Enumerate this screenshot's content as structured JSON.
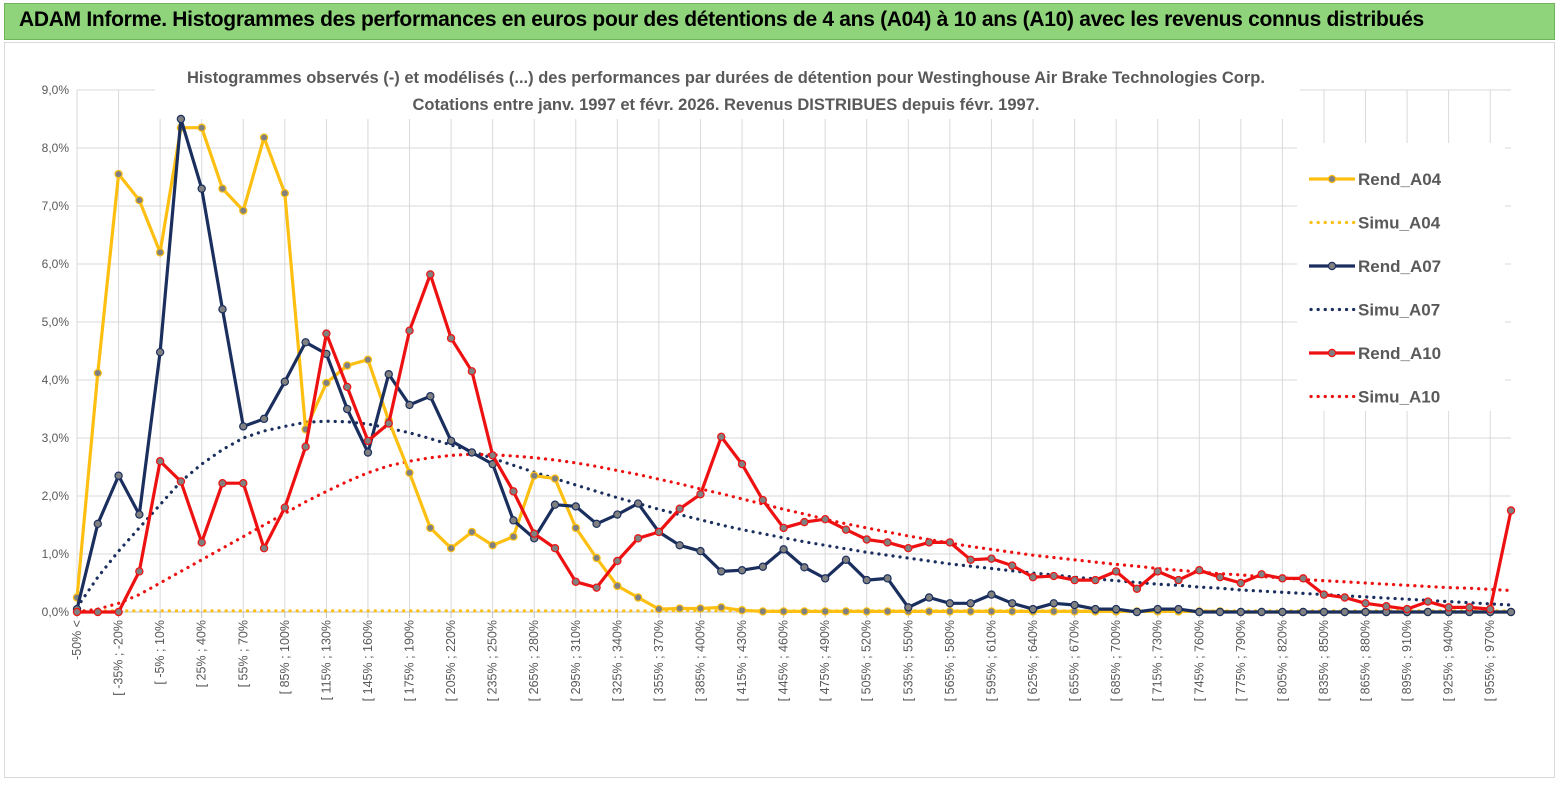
{
  "banner": {
    "title": "ADAM Informe. Histogrammes des performances en euros pour des détentions de 4 ans (A04) à 10 ans (A10) avec les revenus connus distribués"
  },
  "colors": {
    "A04": "#fdbf11",
    "A07": "#1b2f5e",
    "A10": "#ee1111",
    "banner": "#8fd47a"
  },
  "chart_data": {
    "type": "line",
    "title_line1": "Histogrammes observés (-)  et modélisés (...) des performances par durées de détention pour Westinghouse Air Brake Technologies Corp.",
    "title_line2": "Cotations entre janv. 1997 et févr.  2026. Revenus DISTRIBUES depuis févr. 1997.",
    "xlabel": "",
    "ylabel": "",
    "ylim": [
      0,
      9
    ],
    "y_ticks": [
      "0,0%",
      "1,0%",
      "2,0%",
      "3,0%",
      "4,0%",
      "5,0%",
      "6,0%",
      "7,0%",
      "8,0%",
      "9,0%"
    ],
    "x_tick_labels": [
      "-50% <",
      "[ -35% ; -20%",
      "[ -5% ; 10%",
      "[ 25% ; 40%",
      "[ 55% ; 70%",
      "[ 85% ; 100%",
      "[ 115% ; 130%",
      "[ 145% ; 160%",
      "[ 175% ; 190%",
      "[ 205% ; 220%",
      "[ 235% ; 250%",
      "[ 265% ; 280%",
      "[ 295% ; 310%",
      "[ 325% ; 340%",
      "[ 355% ; 370%",
      "[ 385% ; 400%",
      "[ 415% ; 430%",
      "[ 445% ; 460%",
      "[ 475% ; 490%",
      "[ 505% ; 520%",
      "[ 535% ; 550%",
      "[ 565% ; 580%",
      "[ 595% ; 610%",
      "[ 625% ; 640%",
      "[ 655% ; 670%",
      "[ 685% ; 700%",
      "[ 715% ; 730%",
      "[ 745% ; 760%",
      "[ 775% ; 790%",
      "[ 805% ; 820%",
      "[ 835% ; 850%",
      "[ 865% ; 880%",
      "[ 895% ; 910%",
      "[ 925% ; 940%",
      "[ 955% ; 970%"
    ],
    "n_categories": 70,
    "legend_position": "right",
    "series": [
      {
        "name": "Rend_A04",
        "key": "A04",
        "style": "solid",
        "values": [
          0.25,
          4.12,
          7.55,
          7.1,
          6.2,
          8.35,
          8.35,
          7.3,
          6.92,
          8.18,
          7.22,
          3.15,
          3.95,
          4.25,
          4.35,
          3.3,
          2.4,
          1.45,
          1.1,
          1.38,
          1.15,
          1.3,
          2.35,
          2.3,
          1.45,
          0.93,
          0.45,
          0.25,
          0.05,
          0.06,
          0.06,
          0.08,
          0.03,
          0.01,
          0.01,
          0.01,
          0.01,
          0.01,
          0.01,
          0.01,
          0.01,
          0.01,
          0.01,
          0.01,
          0.01,
          0.01,
          0.01,
          0.01,
          0.01,
          0.01,
          0.01,
          0.01,
          0.01,
          0.01,
          0.01,
          0.01,
          0.0,
          0.0,
          0.0,
          0.0,
          0.0,
          0.0,
          0.0,
          0.0,
          0.0,
          0.0,
          0.0,
          0.0,
          0.0,
          0.0
        ]
      },
      {
        "name": "Simu_A04",
        "key": "A04",
        "style": "dotted",
        "values": [
          0.02,
          0.02,
          0.02,
          0.02,
          0.02,
          0.02,
          0.02,
          0.02,
          0.02,
          0.02,
          0.02,
          0.02,
          0.02,
          0.02,
          0.02,
          0.02,
          0.02,
          0.02,
          0.02,
          0.02,
          0.02,
          0.02,
          0.02,
          0.02,
          0.02,
          0.02,
          0.02,
          0.02,
          0.02,
          0.02,
          0.02,
          0.02,
          0.02,
          0.02,
          0.02,
          0.02,
          0.02,
          0.02,
          0.02,
          0.02,
          0.02,
          0.02,
          0.02,
          0.02,
          0.02,
          0.02,
          0.02,
          0.02,
          0.02,
          0.02,
          0.02,
          0.02,
          0.02,
          0.02,
          0.02,
          0.02,
          0.02,
          0.02,
          0.02,
          0.02,
          0.02,
          0.02,
          0.02,
          0.02,
          0.02,
          0.02,
          0.02,
          0.02,
          0.02,
          0.02
        ]
      },
      {
        "name": "Rend_A07",
        "key": "A07",
        "style": "solid",
        "values": [
          0.05,
          1.52,
          2.35,
          1.68,
          4.48,
          8.5,
          7.3,
          5.22,
          3.2,
          3.33,
          3.97,
          4.65,
          4.45,
          3.5,
          2.75,
          4.1,
          3.57,
          3.72,
          2.95,
          2.75,
          2.55,
          1.58,
          1.27,
          1.85,
          1.82,
          1.52,
          1.68,
          1.87,
          1.38,
          1.15,
          1.05,
          0.7,
          0.72,
          0.78,
          1.08,
          0.77,
          0.58,
          0.9,
          0.55,
          0.58,
          0.08,
          0.25,
          0.15,
          0.15,
          0.3,
          0.15,
          0.05,
          0.15,
          0.12,
          0.05,
          0.05,
          0.0,
          0.05,
          0.05,
          0.0,
          0.0,
          0.0,
          0.0,
          0.0,
          0.0,
          0.0,
          0.0,
          0.0,
          0.0,
          0.0,
          0.0,
          0.0,
          0.0,
          0.0,
          0.0
        ]
      },
      {
        "name": "Simu_A07",
        "key": "A07",
        "style": "dotted",
        "values": [
          0.08,
          0.6,
          1.05,
          1.45,
          1.85,
          2.25,
          2.55,
          2.8,
          3.0,
          3.12,
          3.2,
          3.27,
          3.29,
          3.28,
          3.24,
          3.17,
          3.09,
          2.99,
          2.88,
          2.77,
          2.65,
          2.53,
          2.41,
          2.3,
          2.19,
          2.08,
          1.97,
          1.87,
          1.77,
          1.68,
          1.59,
          1.5,
          1.42,
          1.35,
          1.28,
          1.21,
          1.15,
          1.09,
          1.03,
          0.98,
          0.93,
          0.88,
          0.83,
          0.79,
          0.75,
          0.71,
          0.67,
          0.64,
          0.6,
          0.57,
          0.54,
          0.51,
          0.48,
          0.46,
          0.43,
          0.41,
          0.38,
          0.36,
          0.34,
          0.32,
          0.3,
          0.28,
          0.26,
          0.24,
          0.22,
          0.2,
          0.18,
          0.16,
          0.14,
          0.12
        ]
      },
      {
        "name": "Rend_A10",
        "key": "A10",
        "style": "solid",
        "values": [
          0.0,
          0.0,
          0.0,
          0.7,
          2.6,
          2.25,
          1.2,
          2.22,
          2.22,
          1.1,
          1.8,
          2.85,
          4.8,
          3.88,
          2.95,
          3.25,
          4.85,
          5.82,
          4.72,
          4.15,
          2.7,
          2.08,
          1.35,
          1.1,
          0.52,
          0.42,
          0.88,
          1.27,
          1.38,
          1.78,
          2.03,
          3.02,
          2.55,
          1.93,
          1.45,
          1.55,
          1.6,
          1.42,
          1.25,
          1.2,
          1.1,
          1.2,
          1.2,
          0.9,
          0.92,
          0.8,
          0.6,
          0.62,
          0.55,
          0.55,
          0.7,
          0.4,
          0.7,
          0.55,
          0.72,
          0.6,
          0.5,
          0.65,
          0.58,
          0.58,
          0.3,
          0.25,
          0.15,
          0.1,
          0.05,
          0.18,
          0.08,
          0.08,
          0.05,
          1.75
        ]
      },
      {
        "name": "Simu_A10",
        "key": "A10",
        "style": "dotted",
        "values": [
          0.0,
          0.05,
          0.15,
          0.3,
          0.5,
          0.7,
          0.9,
          1.1,
          1.3,
          1.5,
          1.7,
          1.9,
          2.08,
          2.25,
          2.4,
          2.52,
          2.6,
          2.66,
          2.7,
          2.72,
          2.71,
          2.69,
          2.66,
          2.62,
          2.57,
          2.51,
          2.44,
          2.37,
          2.29,
          2.21,
          2.12,
          2.04,
          1.95,
          1.86,
          1.77,
          1.69,
          1.6,
          1.52,
          1.45,
          1.38,
          1.31,
          1.25,
          1.19,
          1.13,
          1.08,
          1.03,
          0.98,
          0.94,
          0.9,
          0.86,
          0.82,
          0.79,
          0.75,
          0.72,
          0.69,
          0.66,
          0.64,
          0.61,
          0.59,
          0.56,
          0.54,
          0.52,
          0.5,
          0.48,
          0.46,
          0.44,
          0.42,
          0.41,
          0.39,
          0.37
        ]
      }
    ]
  }
}
